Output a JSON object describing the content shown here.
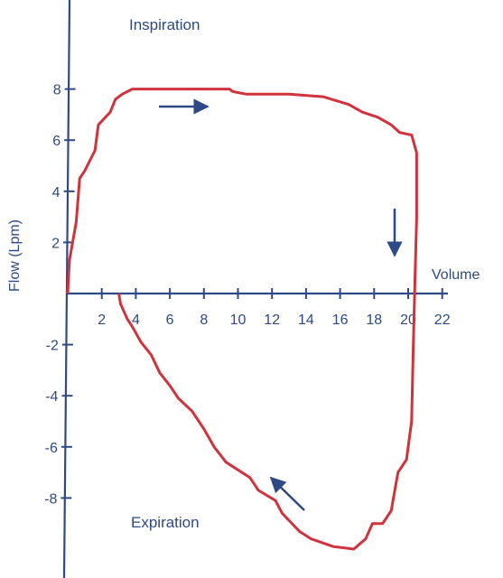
{
  "chart_data": {
    "type": "line",
    "title": "",
    "xlabel": "Volume",
    "ylabel": "Flow (Lpm)",
    "xlim": [
      0,
      22
    ],
    "ylim": [
      -10,
      11
    ],
    "x_ticks": [
      2,
      4,
      6,
      8,
      10,
      12,
      14,
      16,
      18,
      20,
      22
    ],
    "y_ticks": [
      -8,
      -6,
      -4,
      -2,
      2,
      4,
      6,
      8
    ],
    "annotations": [
      "Inspiration",
      "Expiration"
    ],
    "colors": {
      "axis": "#2e4a86",
      "loop": "#d2323c",
      "arrow": "#2e4a86"
    },
    "series": [
      {
        "points": [
          [
            0,
            0
          ],
          [
            0.1,
            1.3
          ],
          [
            0.5,
            2.8
          ],
          [
            0.7,
            4.5
          ],
          [
            1,
            4.8
          ],
          [
            1.6,
            5.6
          ],
          [
            1.8,
            6.6
          ],
          [
            2.5,
            7.1
          ],
          [
            2.8,
            7.6
          ],
          [
            3.2,
            7.8
          ],
          [
            3.8,
            8.0
          ],
          [
            9.5,
            8.0
          ],
          [
            9.7,
            7.9
          ],
          [
            10.5,
            7.8
          ],
          [
            13,
            7.8
          ],
          [
            15,
            7.7
          ],
          [
            16.5,
            7.4
          ],
          [
            17.3,
            7.1
          ],
          [
            18.2,
            6.9
          ],
          [
            19,
            6.6
          ],
          [
            19.5,
            6.3
          ],
          [
            20.2,
            6.2
          ],
          [
            20.5,
            5.5
          ],
          [
            20.5,
            3.0
          ],
          [
            20.4,
            0.5
          ],
          [
            20.3,
            -2
          ],
          [
            20.2,
            -5
          ],
          [
            19.9,
            -6.5
          ],
          [
            19.4,
            -7.0
          ],
          [
            19.0,
            -8.5
          ],
          [
            18.5,
            -9.0
          ],
          [
            17.9,
            -9.0
          ],
          [
            17.5,
            -9.6
          ],
          [
            16.8,
            -10.0
          ],
          [
            15.6,
            -9.9
          ],
          [
            14.3,
            -9.6
          ],
          [
            13.6,
            -9.3
          ],
          [
            12.6,
            -8.6
          ],
          [
            12.2,
            -8.1
          ],
          [
            11.2,
            -7.7
          ],
          [
            10.7,
            -7.2
          ],
          [
            9.3,
            -6.6
          ],
          [
            8.6,
            -6.0
          ],
          [
            8.0,
            -5.3
          ],
          [
            7.3,
            -4.6
          ],
          [
            6.5,
            -4.1
          ],
          [
            6.0,
            -3.6
          ],
          [
            5.4,
            -3.1
          ],
          [
            4.9,
            -2.4
          ],
          [
            4.3,
            -1.9
          ],
          [
            3.8,
            -1.3
          ],
          [
            3.5,
            -1.0
          ],
          [
            3.1,
            -0.4
          ],
          [
            3.0,
            0
          ]
        ]
      }
    ]
  }
}
